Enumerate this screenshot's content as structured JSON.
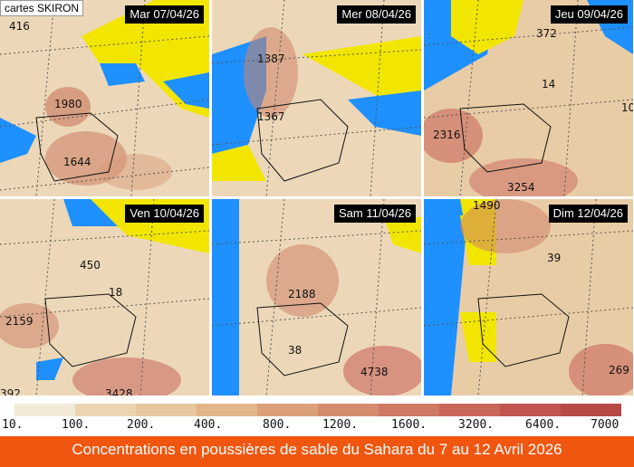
{
  "credit": "cartes SKIRON",
  "panels": [
    {
      "date": "Mar 07/04/26",
      "values": [
        "416",
        "1980",
        "1644"
      ]
    },
    {
      "date": "Mer 08/04/26",
      "values": [
        "1387",
        "1367"
      ]
    },
    {
      "date": "Jeu 09/04/26",
      "values": [
        "372",
        "14",
        "2316",
        "3254",
        "10"
      ]
    },
    {
      "date": "Ven 10/04/26",
      "values": [
        "450",
        "18",
        "2159",
        "392",
        "3428"
      ]
    },
    {
      "date": "Sam 11/04/26",
      "values": [
        "2188",
        "38",
        "4738"
      ]
    },
    {
      "date": "Dim 12/04/26",
      "values": [
        "1490",
        "39",
        "269"
      ]
    }
  ],
  "legend": {
    "labels": [
      "10.",
      "100.",
      "200.",
      "400.",
      "800.",
      "1200.",
      "1600.",
      "3200.",
      "6400.",
      "7000"
    ],
    "colors": [
      "#f2e9d8",
      "#ead5b0",
      "#e6c79e",
      "#e2b58a",
      "#dba07a",
      "#d58c6e",
      "#cf7a64",
      "#c9665a",
      "#c15550",
      "#b84a46"
    ]
  },
  "colors": {
    "sea": "#1e90ff",
    "land_clear": "#f2e600",
    "dust_light": "#ecd8b8",
    "dust_dark": "#c97b63"
  },
  "caption": "Concentrations en poussières de sable du Sahara du 7 au 12 Avril 2026"
}
